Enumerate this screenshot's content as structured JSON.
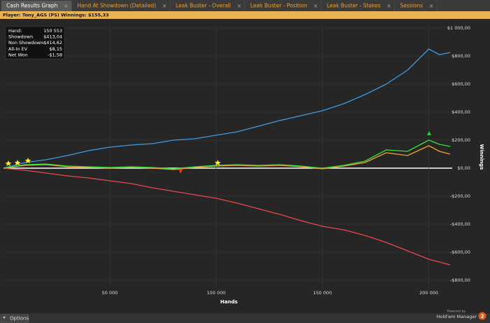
{
  "tabs": [
    "Cash Results Graph",
    "Hand At Showdown (Detailed)",
    "Leak Buster - Overall",
    "Leak Buster - Position",
    "Leak Buster - Stakes",
    "Sessions"
  ],
  "player_bar": "Player: Tony_AGS (PS) Winnings: $155,33",
  "stats": [
    {
      "label": "Hand:",
      "value": "150 553"
    },
    {
      "label": "Showdown",
      "value": "$413,04"
    },
    {
      "label": "Non Showdown",
      "value": "-$414,62"
    },
    {
      "label": "All-In EV",
      "value": "$8,15"
    },
    {
      "label": "Net Won",
      "value": "-$1,58"
    }
  ],
  "options_button": "Options",
  "branding": {
    "powered_by": "Powered by",
    "product": "Hold'em Manager",
    "version": "2"
  },
  "chart_data": {
    "type": "line",
    "xlabel": "Hands",
    "ylabel": "Winnings",
    "grid": true,
    "legend": "bottom",
    "xlim": [
      0,
      211000
    ],
    "ylim": [
      -850,
      1025
    ],
    "xticks": [
      {
        "value": 50000,
        "label": "50 000"
      },
      {
        "value": 100000,
        "label": "100 000"
      },
      {
        "value": 150000,
        "label": "150 000"
      },
      {
        "value": 200000,
        "label": "200 000"
      }
    ],
    "yticks": [
      {
        "value": 1000,
        "label": "$1 000,00"
      },
      {
        "value": 800,
        "label": "$800,00"
      },
      {
        "value": 600,
        "label": "$600,00"
      },
      {
        "value": 400,
        "label": "$400,00"
      },
      {
        "value": 200,
        "label": "$200,00"
      },
      {
        "value": 0,
        "label": "$0,00"
      },
      {
        "value": -200,
        "label": "-$200,00"
      },
      {
        "value": -400,
        "label": "-$400,00"
      },
      {
        "value": -600,
        "label": "-$600,00"
      },
      {
        "value": -800,
        "label": "-$800,00"
      }
    ],
    "x": [
      0,
      10000,
      20000,
      30000,
      40000,
      50000,
      60000,
      70000,
      80000,
      90000,
      100000,
      110000,
      120000,
      130000,
      140000,
      150000,
      160000,
      170000,
      180000,
      190000,
      200000,
      205000,
      210000
    ],
    "series": [
      {
        "name": "Net Won",
        "color": "#3ddc3d",
        "values": [
          0,
          25,
          30,
          15,
          10,
          5,
          10,
          5,
          -5,
          10,
          20,
          25,
          20,
          25,
          15,
          0,
          20,
          50,
          130,
          120,
          200,
          170,
          155
        ]
      },
      {
        "name": "Non Showdown",
        "color": "#e84848",
        "values": [
          0,
          -15,
          -35,
          -55,
          -70,
          -90,
          -110,
          -140,
          -165,
          -190,
          -215,
          -250,
          -290,
          -330,
          -375,
          -415,
          -440,
          -480,
          -530,
          -590,
          -650,
          -670,
          -690
        ]
      },
      {
        "name": "Showdown",
        "color": "#3d9be0",
        "values": [
          0,
          40,
          60,
          90,
          125,
          150,
          165,
          175,
          200,
          210,
          235,
          260,
          300,
          340,
          375,
          410,
          460,
          525,
          600,
          700,
          850,
          810,
          825
        ]
      },
      {
        "name": "All-In EV",
        "color": "#f0a030",
        "values": [
          0,
          20,
          25,
          10,
          5,
          0,
          5,
          0,
          -10,
          5,
          15,
          20,
          15,
          20,
          10,
          -5,
          15,
          40,
          110,
          90,
          160,
          120,
          100
        ]
      }
    ]
  }
}
